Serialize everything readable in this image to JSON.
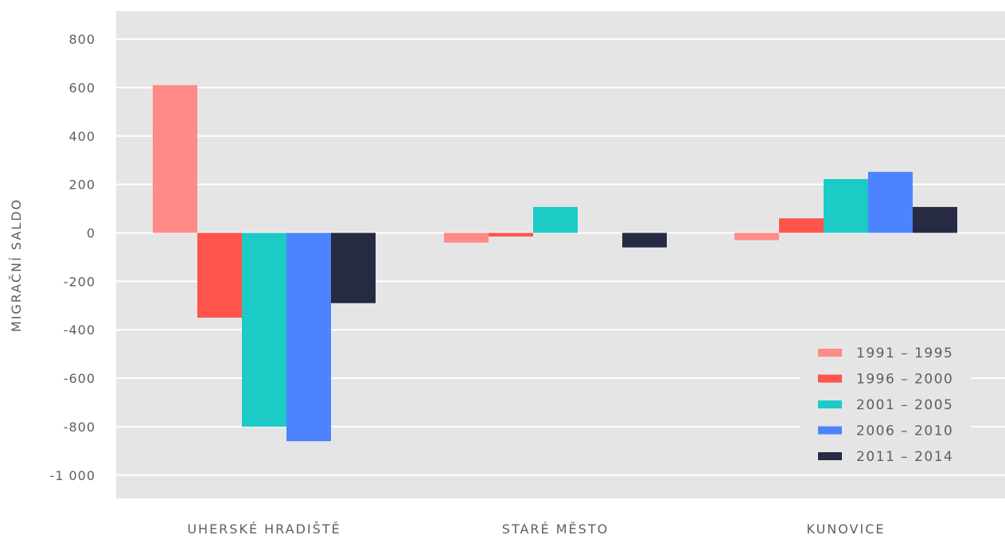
{
  "chart_data": {
    "type": "bar",
    "title": "",
    "xlabel": "",
    "ylabel": "MIGRAČNÍ SALDO",
    "ylim": [
      -1100,
      900
    ],
    "yticks": [
      800,
      600,
      400,
      200,
      0,
      -200,
      -400,
      -600,
      -800,
      -1000
    ],
    "ytick_labels": [
      "800",
      "600",
      "400",
      "200",
      "0",
      "-200",
      "-400",
      "-600",
      "-800",
      "-1 000"
    ],
    "categories": [
      "UHERSKÉ HRADIŠTĚ",
      "STARÉ MĚSTO",
      "KUNOVICE"
    ],
    "series": [
      {
        "name": "1991 – 1995",
        "color": "#ff8a87",
        "values": [
          610,
          -40,
          -30
        ]
      },
      {
        "name": "1996 – 2000",
        "color": "#ff544c",
        "values": [
          -350,
          -15,
          60
        ]
      },
      {
        "name": "2001 – 2005",
        "color": "#1ccbc6",
        "values": [
          -800,
          107,
          222
        ]
      },
      {
        "name": "2006 – 2010",
        "color": "#4d83ff",
        "values": [
          -860,
          0,
          252
        ]
      },
      {
        "name": "2011 – 2014",
        "color": "#262a42",
        "values": [
          -290,
          -60,
          107
        ]
      }
    ],
    "grid": true,
    "legend_position": "bottom-right",
    "background": "#e5e5e5"
  }
}
